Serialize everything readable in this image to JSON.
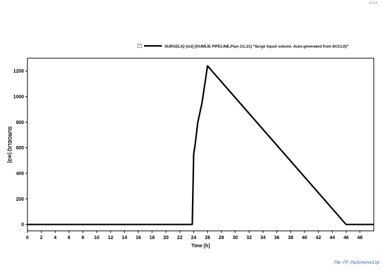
{
  "corner_label": "ELEK",
  "footer_label": "File: FP_PipScheme3.tpl",
  "chart_data": {
    "type": "line",
    "title": "",
    "xlabel": "Time [h]",
    "ylabel": "SURGELIQ [m3]",
    "xlim": [
      0,
      50
    ],
    "ylim": [
      -50,
      1300
    ],
    "xticks": [
      0,
      2,
      4,
      6,
      8,
      10,
      12,
      14,
      16,
      18,
      20,
      22,
      24,
      26,
      28,
      30,
      32,
      34,
      36,
      38,
      40,
      42,
      44,
      46,
      48
    ],
    "yticks": [
      0,
      200,
      400,
      600,
      800,
      1000,
      1200
    ],
    "grid": true,
    "legend_position": "top-center",
    "series": [
      {
        "name": "SURGELIQ [m3] [KUMLIE PIPELINE,Pipe-1\\1,21] \"Surge liquid volume. Auto-generated from ACCLIQ\"",
        "color": "#000000",
        "x": [
          0,
          23.8,
          24.0,
          24.2,
          24.6,
          25.2,
          26.0,
          46.0,
          50.0
        ],
        "y": [
          0,
          0,
          550,
          620,
          800,
          950,
          1240,
          0,
          0
        ]
      }
    ]
  }
}
